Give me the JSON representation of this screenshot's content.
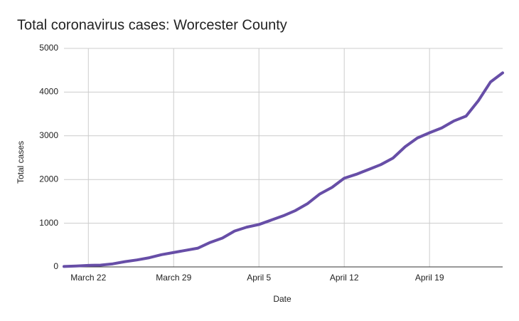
{
  "chart_data": {
    "type": "line",
    "title": "Total coronavirus cases: Worcester County",
    "x_label": "Date",
    "y_label": "Total cases",
    "categories": [
      null,
      null,
      "March 22",
      null,
      null,
      null,
      null,
      null,
      null,
      "March 29",
      null,
      null,
      null,
      null,
      null,
      null,
      "April 5",
      null,
      null,
      null,
      null,
      null,
      null,
      "April 12",
      null,
      null,
      null,
      null,
      null,
      null,
      "April 19",
      null,
      null,
      null,
      null,
      null,
      null
    ],
    "values": [
      10,
      20,
      35,
      40,
      70,
      120,
      160,
      210,
      280,
      330,
      380,
      430,
      560,
      660,
      820,
      910,
      970,
      1070,
      1170,
      1290,
      1450,
      1670,
      1820,
      2030,
      2120,
      2230,
      2340,
      2490,
      2750,
      2950,
      3070,
      3180,
      3340,
      3450,
      3800,
      4230,
      4440
    ],
    "color": "#674ea7",
    "ylim": [
      0,
      5000
    ],
    "yticks": [
      0,
      1000,
      2000,
      3000,
      4000,
      5000
    ],
    "grid": true
  }
}
